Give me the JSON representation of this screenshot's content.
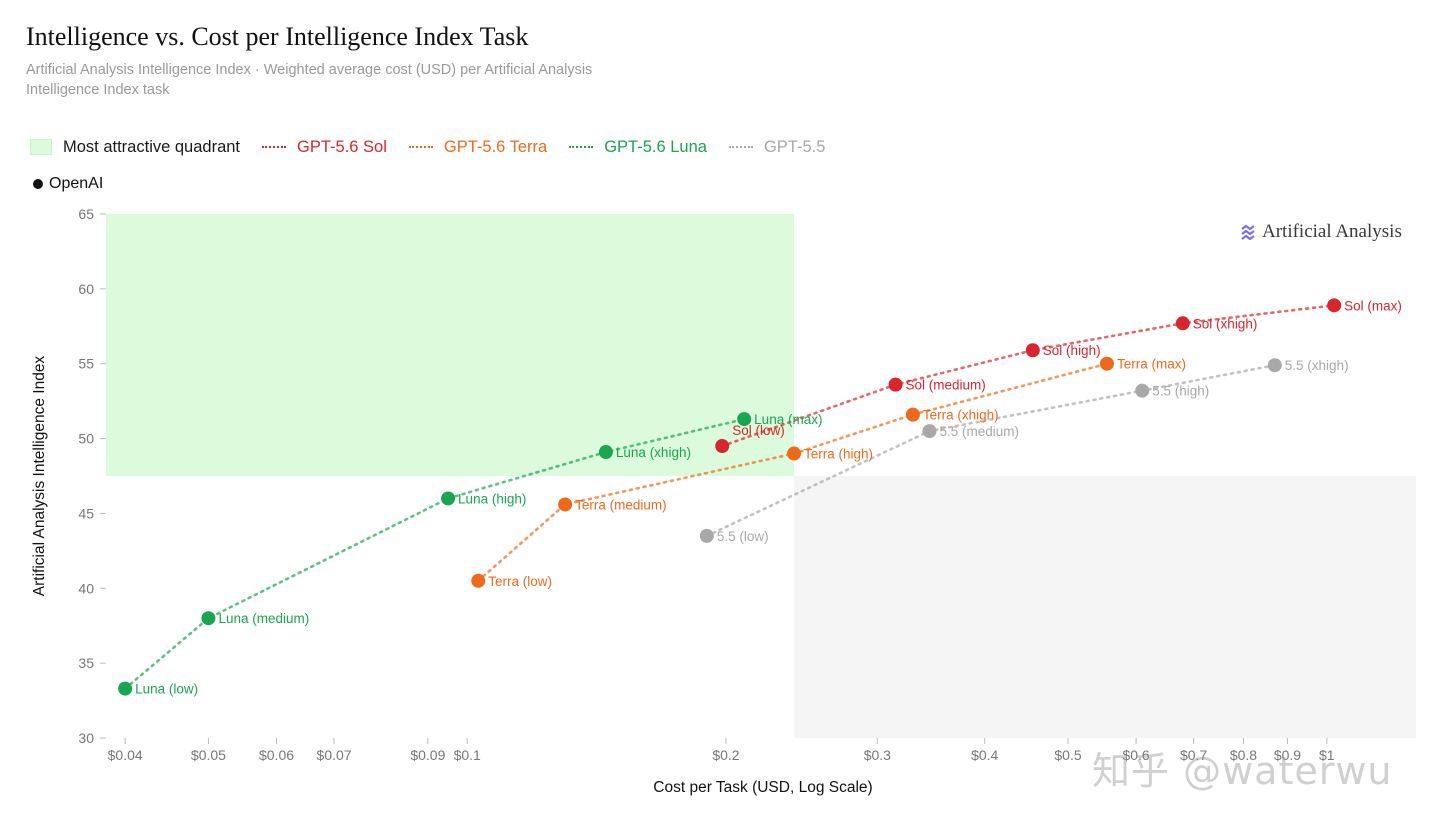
{
  "title": "Intelligence vs. Cost per Intelligence Index Task",
  "subtitle": "Artificial Analysis Intelligence Index · Weighted average cost (USD) per Artificial Analysis Intelligence Index task",
  "legend": {
    "quadrant_label": "Most attractive quadrant",
    "org_label": "OpenAI"
  },
  "brand": "Artificial Analysis",
  "watermark": "知乎 @waterwu",
  "colors": {
    "sol": "#d9262c",
    "terra": "#ee6a1b",
    "luna": "#1aa551",
    "gpt55": "#a8a8a8",
    "quadrant": "#dcfadc",
    "unattractive": "#f5f5f5"
  },
  "chart_data": {
    "type": "scatter",
    "x_scale": "log",
    "xlabel": "Cost per Task (USD, Log Scale)",
    "ylabel": "Artificial Analysis Intelligence Index",
    "xlim": [
      0.038,
      1.27
    ],
    "ylim": [
      30,
      65
    ],
    "x_ticks": [
      0.04,
      0.05,
      0.06,
      0.07,
      0.09,
      0.1,
      0.2,
      0.3,
      0.4,
      0.5,
      0.6,
      0.7,
      0.8,
      0.9,
      1
    ],
    "x_tick_labels": [
      "$0.04",
      "$0.05",
      "$0.06",
      "$0.07",
      "$0.09",
      "$0.1",
      "$0.2",
      "$0.3",
      "$0.4",
      "$0.5",
      "$0.6",
      "$0.7",
      "$0.8",
      "$0.9",
      "$1"
    ],
    "y_ticks": [
      30,
      35,
      40,
      45,
      50,
      55,
      60,
      65
    ],
    "y_tick_labels": [
      "30",
      "35",
      "40",
      "45",
      "50",
      "55",
      "60",
      "65"
    ],
    "attractive_quadrant": {
      "x_max": 0.24,
      "y_min": 47.5
    },
    "legend_position": "top-left",
    "grid": false,
    "series": [
      {
        "name": "GPT-5.6 Sol",
        "color": "#d9262c",
        "points": [
          {
            "label": "Sol (low)",
            "x": 0.198,
            "y": 49.5
          },
          {
            "label": "Sol (medium)",
            "x": 0.315,
            "y": 53.6
          },
          {
            "label": "Sol (high)",
            "x": 0.455,
            "y": 55.9
          },
          {
            "label": "Sol (xhigh)",
            "x": 0.68,
            "y": 57.7
          },
          {
            "label": "Sol (max)",
            "x": 1.02,
            "y": 58.9
          }
        ]
      },
      {
        "name": "GPT-5.6 Terra",
        "color": "#ee6a1b",
        "points": [
          {
            "label": "Terra (low)",
            "x": 0.103,
            "y": 40.5
          },
          {
            "label": "Terra (medium)",
            "x": 0.13,
            "y": 45.6
          },
          {
            "label": "Terra (high)",
            "x": 0.24,
            "y": 49.0
          },
          {
            "label": "Terra (xhigh)",
            "x": 0.33,
            "y": 51.6
          },
          {
            "label": "Terra (max)",
            "x": 0.555,
            "y": 55.0
          }
        ]
      },
      {
        "name": "GPT-5.6 Luna",
        "color": "#1aa551",
        "points": [
          {
            "label": "Luna (low)",
            "x": 0.04,
            "y": 33.3
          },
          {
            "label": "Luna (medium)",
            "x": 0.05,
            "y": 38.0
          },
          {
            "label": "Luna (high)",
            "x": 0.095,
            "y": 46.0
          },
          {
            "label": "Luna (xhigh)",
            "x": 0.145,
            "y": 49.1
          },
          {
            "label": "Luna (max)",
            "x": 0.21,
            "y": 51.3
          }
        ]
      },
      {
        "name": "GPT-5.5",
        "color": "#a8a8a8",
        "points": [
          {
            "label": "5.5 (low)",
            "x": 0.19,
            "y": 43.5
          },
          {
            "label": "5.5 (medium)",
            "x": 0.345,
            "y": 50.5
          },
          {
            "label": "5.5 (high)",
            "x": 0.61,
            "y": 53.2
          },
          {
            "label": "5.5 (xhigh)",
            "x": 0.87,
            "y": 54.9
          }
        ]
      }
    ]
  }
}
